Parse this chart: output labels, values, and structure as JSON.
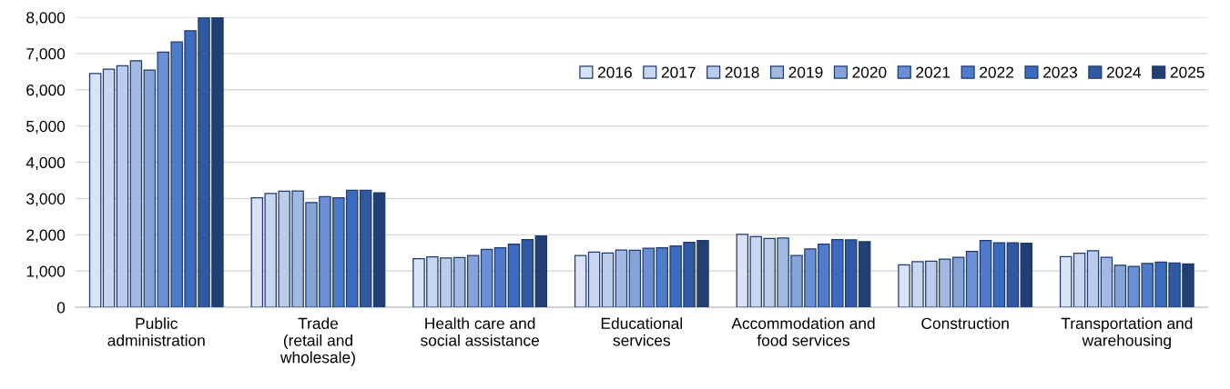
{
  "chart_data": {
    "type": "bar",
    "categories": [
      "Public\nadministration",
      "Trade\n(retail and\nwholesale)",
      "Health care and\nsocial assistance",
      "Educational\nservices",
      "Accommodation and\nfood services",
      "Construction",
      "Transportation and\nwarehousing"
    ],
    "series": [
      {
        "name": "2016",
        "color": "#dae3f3",
        "values": [
          6450,
          3020,
          1340,
          1430,
          2010,
          1170,
          1400
        ]
      },
      {
        "name": "2017",
        "color": "#c9d6ef",
        "values": [
          6570,
          3140,
          1390,
          1520,
          1950,
          1260,
          1490
        ]
      },
      {
        "name": "2018",
        "color": "#bccbe9",
        "values": [
          6660,
          3200,
          1360,
          1500,
          1900,
          1270,
          1560
        ]
      },
      {
        "name": "2019",
        "color": "#a3b9e2",
        "values": [
          6800,
          3210,
          1370,
          1580,
          1910,
          1330,
          1380
        ]
      },
      {
        "name": "2020",
        "color": "#86a3d8",
        "values": [
          6540,
          2890,
          1430,
          1570,
          1430,
          1380,
          1160
        ]
      },
      {
        "name": "2021",
        "color": "#6a8fd4",
        "values": [
          7040,
          3050,
          1600,
          1630,
          1610,
          1540,
          1130
        ]
      },
      {
        "name": "2022",
        "color": "#4f7bcb",
        "values": [
          7320,
          3020,
          1640,
          1640,
          1740,
          1840,
          1210
        ]
      },
      {
        "name": "2023",
        "color": "#3b6bbf",
        "values": [
          7630,
          3230,
          1740,
          1690,
          1870,
          1780,
          1250
        ]
      },
      {
        "name": "2024",
        "color": "#2f5aa3",
        "values": [
          8000,
          3230,
          1870,
          1790,
          1860,
          1780,
          1220
        ]
      },
      {
        "name": "2025",
        "color": "#223f73",
        "values": [
          8000,
          3160,
          1970,
          1840,
          1810,
          1770,
          1200
        ]
      }
    ],
    "ylim": [
      0,
      8000
    ],
    "yticks": [
      {
        "value": 0,
        "label": "0"
      },
      {
        "value": 1000,
        "label": "1,000"
      },
      {
        "value": 2000,
        "label": "2,000"
      },
      {
        "value": 3000,
        "label": "3,000"
      },
      {
        "value": 4000,
        "label": "4,000"
      },
      {
        "value": 5000,
        "label": "5,000"
      },
      {
        "value": 6000,
        "label": "6,000"
      },
      {
        "value": 7000,
        "label": "7,000"
      },
      {
        "value": 8000,
        "label": "8,000"
      }
    ],
    "grid": "y",
    "legend": "top right"
  }
}
